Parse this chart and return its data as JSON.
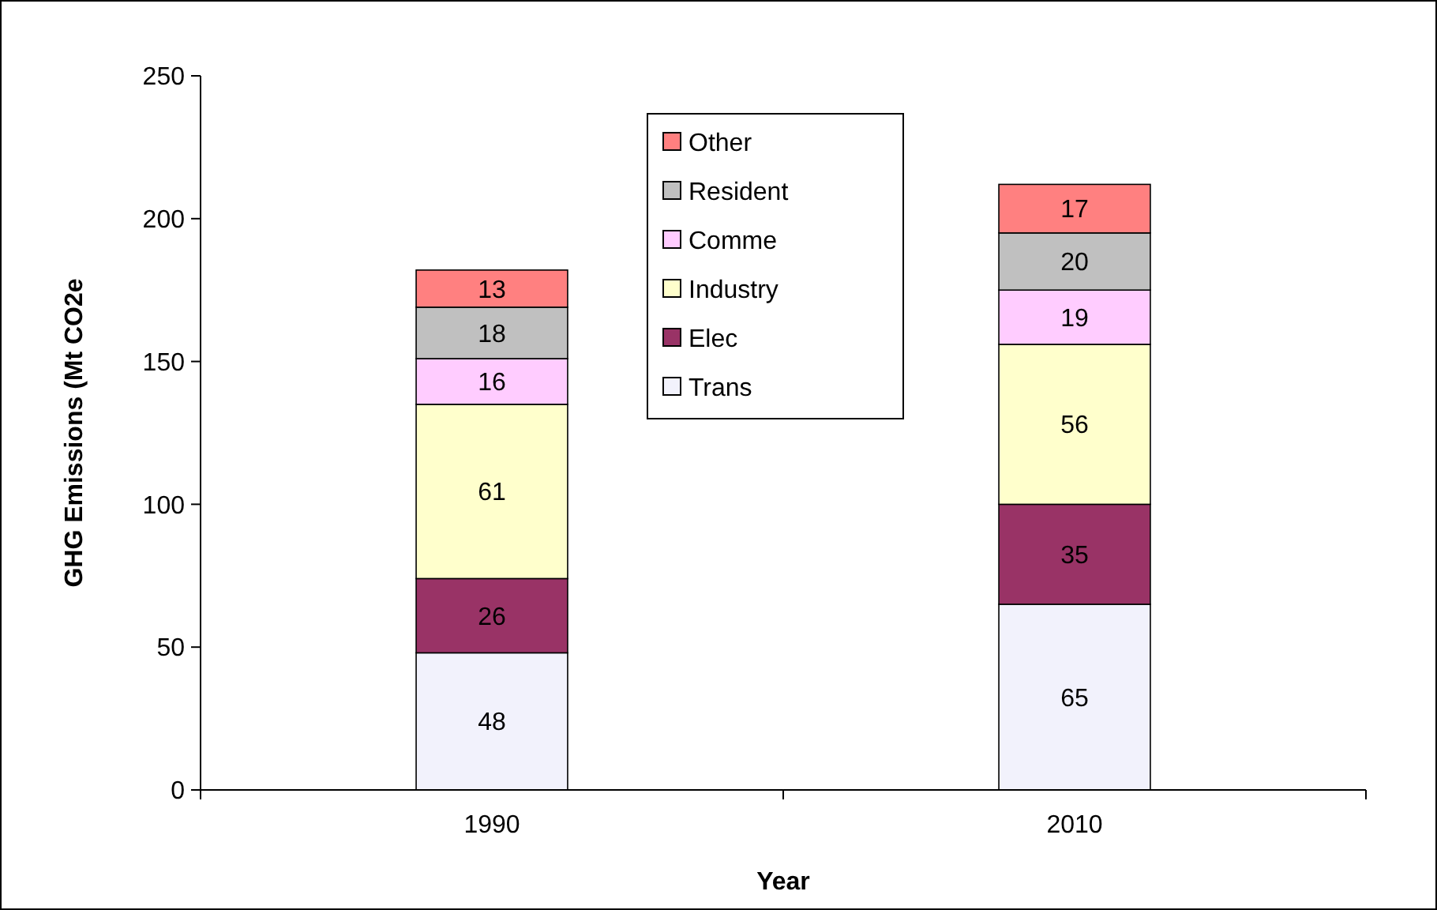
{
  "chart_data": {
    "type": "bar",
    "stacked": true,
    "xlabel": "Year",
    "ylabel": "GHG Emissions (Mt CO2e",
    "categories": [
      "1990",
      "2010"
    ],
    "series": [
      {
        "name": "Trans",
        "color": "#f2f2fc",
        "values": [
          48,
          65
        ]
      },
      {
        "name": "Elec",
        "color": "#993366",
        "values": [
          26,
          35
        ]
      },
      {
        "name": "Industry",
        "color": "#ffffcc",
        "values": [
          61,
          56
        ]
      },
      {
        "name": "Comme",
        "color": "#ffccff",
        "values": [
          16,
          19
        ]
      },
      {
        "name": "Resident",
        "color": "#c0c0c0",
        "values": [
          18,
          20
        ]
      },
      {
        "name": "Other",
        "color": "#ff8080",
        "values": [
          13,
          17
        ]
      }
    ],
    "ylim": [
      0,
      250
    ],
    "yticks": [
      0,
      50,
      100,
      150,
      200,
      250
    ],
    "data_labels": true,
    "legend": "top",
    "grid": false
  }
}
